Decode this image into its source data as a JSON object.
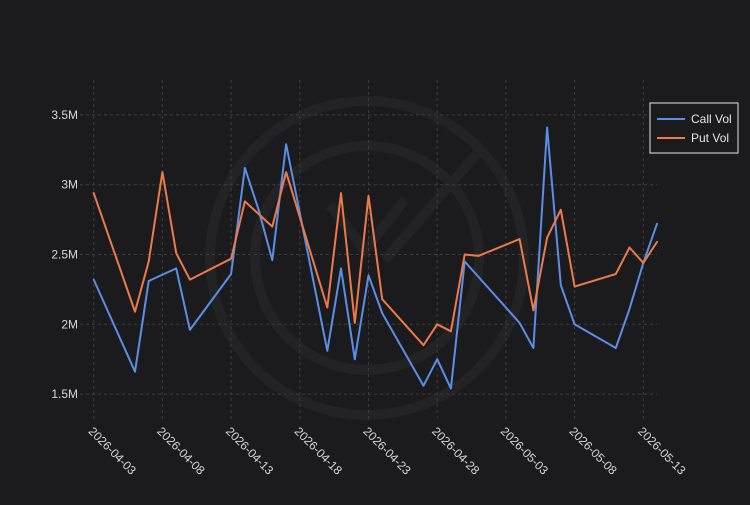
{
  "chart_data": {
    "type": "line",
    "title": "",
    "xlabel": "",
    "ylabel": "",
    "x_ticks": [
      "2026-04-03",
      "2026-04-08",
      "2026-04-13",
      "2026-04-18",
      "2026-04-23",
      "2026-04-28",
      "2026-05-03",
      "2026-05-08",
      "2026-05-13"
    ],
    "y_ticks": [
      {
        "value": 1500000,
        "label": "1.5M"
      },
      {
        "value": 2000000,
        "label": "2M"
      },
      {
        "value": 2500000,
        "label": "2.5M"
      },
      {
        "value": 3000000,
        "label": "3M"
      },
      {
        "value": 3500000,
        "label": "3.5M"
      }
    ],
    "xlim": [
      "2026-04-02",
      "2026-05-14"
    ],
    "ylim": [
      1300000,
      3750000
    ],
    "grid": true,
    "legend_position": "top-right",
    "background_color": "#1b1b1e",
    "series": [
      {
        "name": "Call Vol",
        "color": "#5b8ee6",
        "points": [
          [
            "2026-04-03",
            2320000
          ],
          [
            "2026-04-06",
            1660000
          ],
          [
            "2026-04-07",
            2310000
          ],
          [
            "2026-04-09",
            2400000
          ],
          [
            "2026-04-10",
            1960000
          ],
          [
            "2026-04-13",
            2360000
          ],
          [
            "2026-04-14",
            3120000
          ],
          [
            "2026-04-15",
            2820000
          ],
          [
            "2026-04-16",
            2460000
          ],
          [
            "2026-04-17",
            3290000
          ],
          [
            "2026-04-20",
            1810000
          ],
          [
            "2026-04-21",
            2400000
          ],
          [
            "2026-04-22",
            1750000
          ],
          [
            "2026-04-23",
            2350000
          ],
          [
            "2026-04-24",
            2080000
          ],
          [
            "2026-04-27",
            1560000
          ],
          [
            "2026-04-28",
            1750000
          ],
          [
            "2026-04-29",
            1540000
          ],
          [
            "2026-04-30",
            2450000
          ],
          [
            "2026-05-04",
            2010000
          ],
          [
            "2026-05-05",
            1830000
          ],
          [
            "2026-05-06",
            3410000
          ],
          [
            "2026-05-07",
            2280000
          ],
          [
            "2026-05-08",
            2000000
          ],
          [
            "2026-05-11",
            1830000
          ],
          [
            "2026-05-12",
            2110000
          ],
          [
            "2026-05-13",
            2440000
          ],
          [
            "2026-05-14",
            2720000
          ]
        ]
      },
      {
        "name": "Put Vol",
        "color": "#ec7a4a",
        "points": [
          [
            "2026-04-03",
            2940000
          ],
          [
            "2026-04-06",
            2090000
          ],
          [
            "2026-04-07",
            2450000
          ],
          [
            "2026-04-08",
            3090000
          ],
          [
            "2026-04-09",
            2510000
          ],
          [
            "2026-04-10",
            2320000
          ],
          [
            "2026-04-13",
            2470000
          ],
          [
            "2026-04-14",
            2880000
          ],
          [
            "2026-04-16",
            2700000
          ],
          [
            "2026-04-17",
            3090000
          ],
          [
            "2026-04-20",
            2120000
          ],
          [
            "2026-04-21",
            2940000
          ],
          [
            "2026-04-22",
            2010000
          ],
          [
            "2026-04-23",
            2920000
          ],
          [
            "2026-04-24",
            2180000
          ],
          [
            "2026-04-27",
            1850000
          ],
          [
            "2026-04-28",
            2000000
          ],
          [
            "2026-04-29",
            1950000
          ],
          [
            "2026-04-30",
            2500000
          ],
          [
            "2026-05-01",
            2490000
          ],
          [
            "2026-05-04",
            2610000
          ],
          [
            "2026-05-05",
            2100000
          ],
          [
            "2026-05-06",
            2620000
          ],
          [
            "2026-05-07",
            2820000
          ],
          [
            "2026-05-08",
            2270000
          ],
          [
            "2026-05-11",
            2360000
          ],
          [
            "2026-05-12",
            2550000
          ],
          [
            "2026-05-13",
            2440000
          ],
          [
            "2026-05-14",
            2590000
          ]
        ]
      }
    ]
  }
}
